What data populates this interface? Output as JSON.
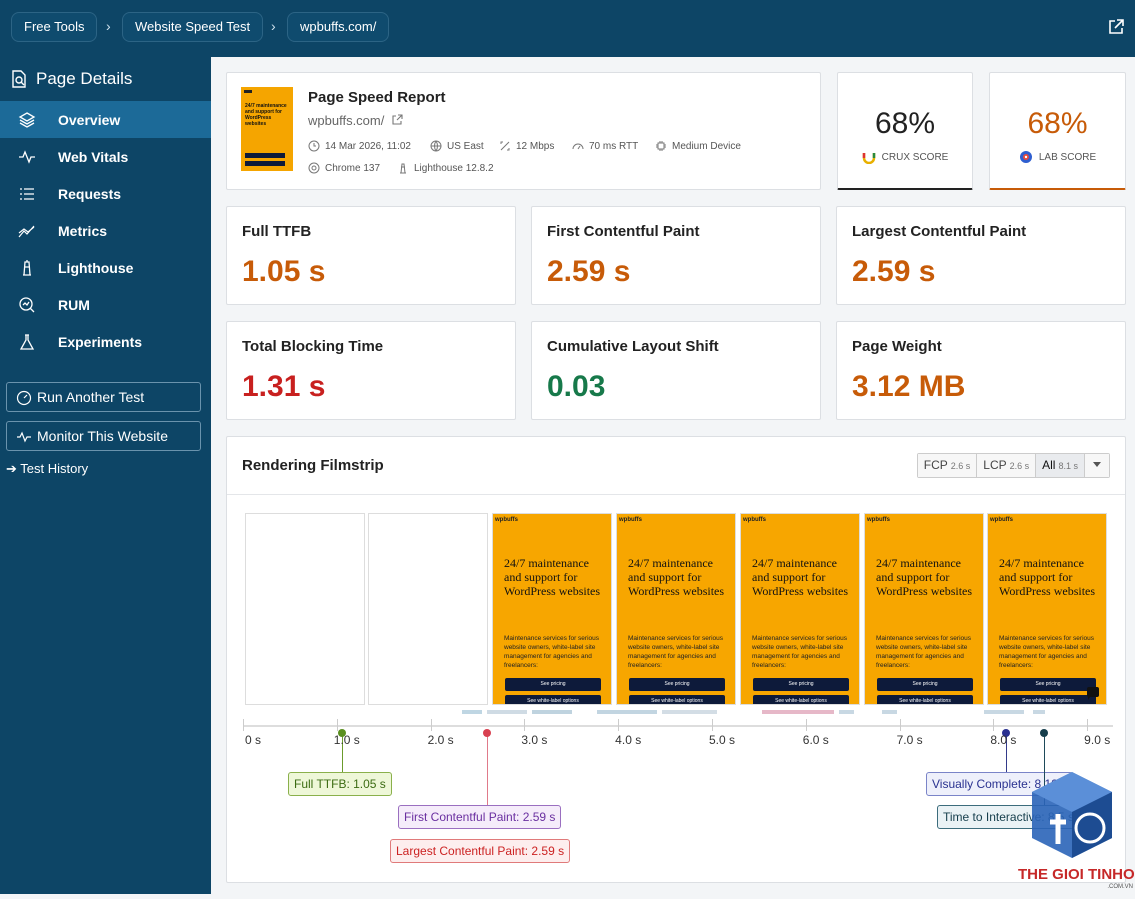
{
  "breadcrumbs": [
    "Free Tools",
    "Website Speed Test",
    "wpbuffs.com/"
  ],
  "sidebar": {
    "title": "Page Details",
    "items": [
      {
        "label": "Overview",
        "icon": "layers-icon"
      },
      {
        "label": "Web Vitals",
        "icon": "vitals-icon"
      },
      {
        "label": "Requests",
        "icon": "list-icon"
      },
      {
        "label": "Metrics",
        "icon": "trend-icon"
      },
      {
        "label": "Lighthouse",
        "icon": "lighthouse-icon"
      },
      {
        "label": "RUM",
        "icon": "rum-icon"
      },
      {
        "label": "Experiments",
        "icon": "flask-icon"
      }
    ],
    "run_test": "Run Another Test",
    "monitor": "Monitor This Website",
    "history": "➔ Test History"
  },
  "report": {
    "title": "Page Speed Report",
    "url": "wpbuffs.com/",
    "date": "14 Mar 2026, 11:02",
    "location": "US East",
    "bandwidth": "12 Mbps",
    "rtt": "70 ms RTT",
    "device": "Medium Device",
    "browser": "Chrome 137",
    "lighthouse": "Lighthouse 12.8.2",
    "thumb_text": "24/7 maintenance and support for WordPress websites"
  },
  "scores": {
    "crux": {
      "value": "68%",
      "label": "CRUX SCORE",
      "color": "#222222"
    },
    "lab": {
      "value": "68%",
      "label": "LAB SCORE",
      "color": "#c75b08"
    }
  },
  "metrics": [
    {
      "label": "Full TTFB",
      "value": "1.05 s",
      "status": "orange"
    },
    {
      "label": "First Contentful Paint",
      "value": "2.59 s",
      "status": "orange"
    },
    {
      "label": "Largest Contentful Paint",
      "value": "2.59 s",
      "status": "orange"
    },
    {
      "label": "Total Blocking Time",
      "value": "1.31 s",
      "status": "red"
    },
    {
      "label": "Cumulative Layout Shift",
      "value": "0.03",
      "status": "green"
    },
    {
      "label": "Page Weight",
      "value": "3.12 MB",
      "status": "orange"
    }
  ],
  "filmstrip": {
    "title": "Rendering Filmstrip",
    "filters": [
      {
        "label": "FCP",
        "time": "2.6 s"
      },
      {
        "label": "LCP",
        "time": "2.6 s"
      },
      {
        "label": "All",
        "time": "8.1 s"
      }
    ],
    "frame": {
      "logo": "wpbuffs",
      "heading": "24/7 maintenance and support for WordPress websites",
      "body": "Maintenance services for serious website owners, white-label site management for agencies and freelancers:",
      "btn1": "See pricing",
      "btn2": "See white-label options"
    },
    "ticks": [
      "0 s",
      "1.0 s",
      "2.0 s",
      "3.0 s",
      "4.0 s",
      "5.0 s",
      "6.0 s",
      "7.0 s",
      "8.0 s",
      "9.0 s"
    ],
    "markers": {
      "ttfb": "Full TTFB: 1.05 s",
      "fcp": "First Contentful Paint: 2.59 s",
      "lcp": "Largest Contentful Paint: 2.59 s",
      "vc": "Visually Complete: 8.12 s",
      "tti": "Time to Interactive: 8.5 s"
    }
  },
  "colors": {
    "sidebar": "#0d4566",
    "active": "#1c6a98",
    "orange": "#c75b08",
    "red": "#c8201f",
    "green": "#17794a"
  },
  "watermark": {
    "brand": "THE GIOI TINHOC",
    "domain": ".COM.VN"
  }
}
